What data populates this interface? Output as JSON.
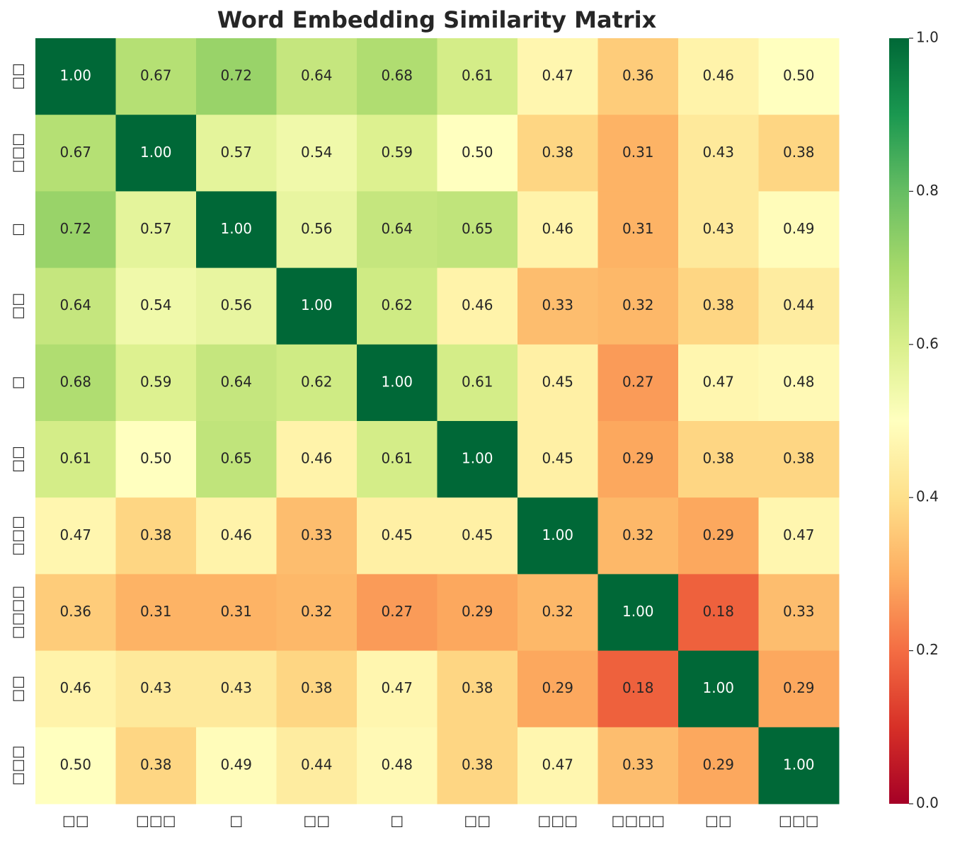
{
  "chart_data": {
    "type": "heatmap",
    "title": "Word Embedding Similarity Matrix",
    "columns": [
      "□□",
      "□□□",
      "□",
      "□□",
      "□",
      "□□",
      "□□□",
      "□□□□",
      "□□",
      "□□□"
    ],
    "rows": [
      "□□",
      "□□□",
      "□",
      "□□",
      "□",
      "□□",
      "□□□",
      "□□□□",
      "□□",
      "□□□"
    ],
    "values": [
      [
        1,
        0.67,
        0.72,
        0.64,
        0.68,
        0.61,
        0.47,
        0.36,
        0.46,
        0.5
      ],
      [
        0.67,
        1,
        0.57,
        0.54,
        0.59,
        0.5,
        0.38,
        0.31,
        0.43,
        0.38
      ],
      [
        0.72,
        0.57,
        1,
        0.56,
        0.64,
        0.65,
        0.46,
        0.31,
        0.43,
        0.49
      ],
      [
        0.64,
        0.54,
        0.56,
        1,
        0.62,
        0.46,
        0.33,
        0.32,
        0.38,
        0.44
      ],
      [
        0.68,
        0.59,
        0.64,
        0.62,
        1,
        0.61,
        0.45,
        0.27,
        0.47,
        0.48
      ],
      [
        0.61,
        0.5,
        0.65,
        0.46,
        0.61,
        1,
        0.45,
        0.29,
        0.38,
        0.38
      ],
      [
        0.47,
        0.38,
        0.46,
        0.33,
        0.45,
        0.45,
        1,
        0.32,
        0.29,
        0.47
      ],
      [
        0.36,
        0.31,
        0.31,
        0.32,
        0.27,
        0.29,
        0.32,
        1,
        0.18,
        0.33
      ],
      [
        0.46,
        0.43,
        0.43,
        0.38,
        0.47,
        0.38,
        0.29,
        0.18,
        1,
        0.29
      ],
      [
        0.5,
        0.38,
        0.49,
        0.44,
        0.48,
        0.38,
        0.47,
        0.33,
        0.29,
        1
      ]
    ],
    "value_labels": [
      [
        "1.00",
        "0.67",
        "0.72",
        "0.64",
        "0.68",
        "0.61",
        "0.47",
        "0.36",
        "0.46",
        "0.50"
      ],
      [
        "0.67",
        "1.00",
        "0.57",
        "0.54",
        "0.59",
        "0.50",
        "0.38",
        "0.31",
        "0.43",
        "0.38"
      ],
      [
        "0.72",
        "0.57",
        "1.00",
        "0.56",
        "0.64",
        "0.65",
        "0.46",
        "0.31",
        "0.43",
        "0.49"
      ],
      [
        "0.64",
        "0.54",
        "0.56",
        "1.00",
        "0.62",
        "0.46",
        "0.33",
        "0.32",
        "0.38",
        "0.44"
      ],
      [
        "0.68",
        "0.59",
        "0.64",
        "0.62",
        "1.00",
        "0.61",
        "0.45",
        "0.27",
        "0.47",
        "0.48"
      ],
      [
        "0.61",
        "0.50",
        "0.65",
        "0.46",
        "0.61",
        "1.00",
        "0.45",
        "0.29",
        "0.38",
        "0.38"
      ],
      [
        "0.47",
        "0.38",
        "0.46",
        "0.33",
        "0.45",
        "0.45",
        "1.00",
        "0.32",
        "0.29",
        "0.47"
      ],
      [
        "0.36",
        "0.31",
        "0.31",
        "0.32",
        "0.27",
        "0.29",
        "0.32",
        "1.00",
        "0.18",
        "0.33"
      ],
      [
        "0.46",
        "0.43",
        "0.43",
        "0.38",
        "0.47",
        "0.38",
        "0.29",
        "0.18",
        "1.00",
        "0.29"
      ],
      [
        "0.50",
        "0.38",
        "0.49",
        "0.44",
        "0.48",
        "0.38",
        "0.47",
        "0.33",
        "0.29",
        "1.00"
      ]
    ],
    "colormap": [
      "#a50026",
      "#d73027",
      "#f46d43",
      "#fdae61",
      "#fee08b",
      "#ffffbf",
      "#d9ef8b",
      "#a6d96a",
      "#66bd63",
      "#1a9850",
      "#006837"
    ],
    "clim": [
      0,
      1
    ],
    "cticks": [
      {
        "value": 0,
        "label": "0.0"
      },
      0.2,
      0.4,
      0.6,
      0.8,
      {
        "value": 1,
        "label": "1.0"
      }
    ]
  }
}
